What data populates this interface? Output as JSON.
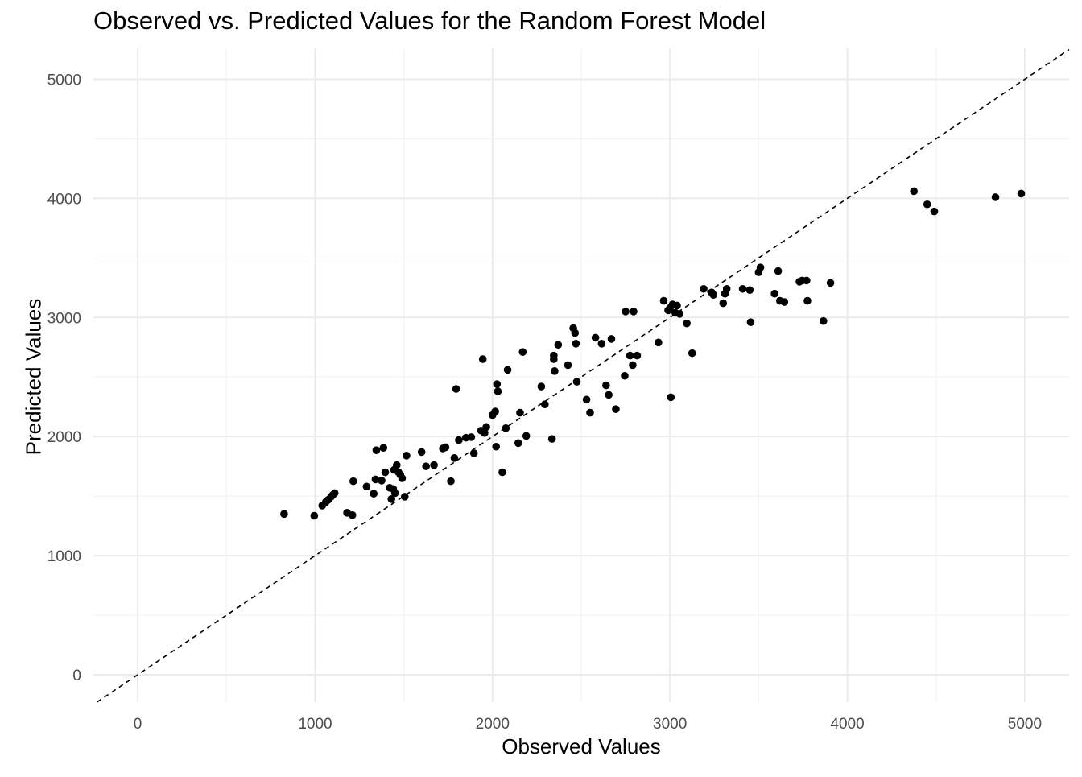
{
  "chart_data": {
    "type": "scatter",
    "title": "Observed vs. Predicted Values for the Random Forest Model",
    "xlabel": "Observed Values",
    "ylabel": "Predicted Values",
    "xlim": [
      -250,
      5250
    ],
    "ylim": [
      -230,
      5260
    ],
    "x_ticks": [
      0,
      1000,
      2000,
      3000,
      4000,
      5000
    ],
    "y_ticks": [
      0,
      1000,
      2000,
      3000,
      4000,
      5000
    ],
    "x_tick_labels": [
      "0",
      "1000",
      "2000",
      "3000",
      "4000",
      "5000"
    ],
    "y_tick_labels": [
      "0",
      "1000",
      "2000",
      "3000",
      "4000",
      "5000"
    ],
    "grid": true,
    "reference_line": {
      "style": "dashed",
      "slope": 1,
      "intercept": 0
    },
    "colors": {
      "points": "#000000",
      "grid_major": "#ebebeb",
      "grid_minor": "#f3f3f3",
      "tick_text": "#4d4d4d"
    },
    "points": [
      [
        825,
        1350
      ],
      [
        995,
        1335
      ],
      [
        1040,
        1420
      ],
      [
        1060,
        1450
      ],
      [
        1075,
        1470
      ],
      [
        1090,
        1495
      ],
      [
        1100,
        1510
      ],
      [
        1110,
        1525
      ],
      [
        1180,
        1360
      ],
      [
        1210,
        1340
      ],
      [
        1215,
        1625
      ],
      [
        1290,
        1580
      ],
      [
        1330,
        1520
      ],
      [
        1340,
        1640
      ],
      [
        1345,
        1885
      ],
      [
        1375,
        1630
      ],
      [
        1385,
        1905
      ],
      [
        1395,
        1700
      ],
      [
        1420,
        1570
      ],
      [
        1430,
        1475
      ],
      [
        1440,
        1560
      ],
      [
        1445,
        1720
      ],
      [
        1450,
        1525
      ],
      [
        1460,
        1760
      ],
      [
        1470,
        1700
      ],
      [
        1480,
        1680
      ],
      [
        1490,
        1650
      ],
      [
        1505,
        1495
      ],
      [
        1515,
        1840
      ],
      [
        1600,
        1870
      ],
      [
        1625,
        1750
      ],
      [
        1670,
        1760
      ],
      [
        1720,
        1900
      ],
      [
        1735,
        1910
      ],
      [
        1765,
        1625
      ],
      [
        1785,
        1820
      ],
      [
        1795,
        2400
      ],
      [
        1810,
        1970
      ],
      [
        1850,
        1990
      ],
      [
        1880,
        1995
      ],
      [
        1895,
        1860
      ],
      [
        1935,
        2050
      ],
      [
        1945,
        2650
      ],
      [
        1955,
        2030
      ],
      [
        1965,
        2080
      ],
      [
        2000,
        2180
      ],
      [
        2015,
        2210
      ],
      [
        2020,
        1915
      ],
      [
        2025,
        2440
      ],
      [
        2030,
        2380
      ],
      [
        2055,
        1700
      ],
      [
        2075,
        2070
      ],
      [
        2085,
        2560
      ],
      [
        2145,
        1945
      ],
      [
        2155,
        2200
      ],
      [
        2170,
        2710
      ],
      [
        2190,
        2005
      ],
      [
        2275,
        2420
      ],
      [
        2295,
        2270
      ],
      [
        2335,
        1980
      ],
      [
        2345,
        2680
      ],
      [
        2345,
        2650
      ],
      [
        2350,
        2550
      ],
      [
        2370,
        2770
      ],
      [
        2425,
        2600
      ],
      [
        2455,
        2910
      ],
      [
        2465,
        2870
      ],
      [
        2470,
        2780
      ],
      [
        2475,
        2460
      ],
      [
        2530,
        2310
      ],
      [
        2550,
        2200
      ],
      [
        2580,
        2830
      ],
      [
        2615,
        2780
      ],
      [
        2640,
        2430
      ],
      [
        2655,
        2350
      ],
      [
        2670,
        2820
      ],
      [
        2695,
        2230
      ],
      [
        2745,
        2510
      ],
      [
        2750,
        3050
      ],
      [
        2775,
        2680
      ],
      [
        2790,
        2600
      ],
      [
        2795,
        3050
      ],
      [
        2815,
        2680
      ],
      [
        2935,
        2790
      ],
      [
        2965,
        3140
      ],
      [
        2990,
        3060
      ],
      [
        3000,
        3080
      ],
      [
        3005,
        2330
      ],
      [
        3015,
        3110
      ],
      [
        3030,
        3040
      ],
      [
        3040,
        3100
      ],
      [
        3055,
        3030
      ],
      [
        3095,
        2950
      ],
      [
        3125,
        2700
      ],
      [
        3190,
        3240
      ],
      [
        3235,
        3210
      ],
      [
        3245,
        3190
      ],
      [
        3300,
        3120
      ],
      [
        3310,
        3200
      ],
      [
        3320,
        3240
      ],
      [
        3410,
        3240
      ],
      [
        3450,
        3230
      ],
      [
        3455,
        2960
      ],
      [
        3500,
        3380
      ],
      [
        3510,
        3420
      ],
      [
        3590,
        3200
      ],
      [
        3610,
        3390
      ],
      [
        3620,
        3140
      ],
      [
        3645,
        3130
      ],
      [
        3730,
        3300
      ],
      [
        3745,
        3310
      ],
      [
        3770,
        3310
      ],
      [
        3775,
        3140
      ],
      [
        3865,
        2970
      ],
      [
        3905,
        3290
      ],
      [
        4375,
        4060
      ],
      [
        4450,
        3950
      ],
      [
        4490,
        3890
      ],
      [
        4835,
        4010
      ],
      [
        4980,
        4040
      ]
    ]
  }
}
